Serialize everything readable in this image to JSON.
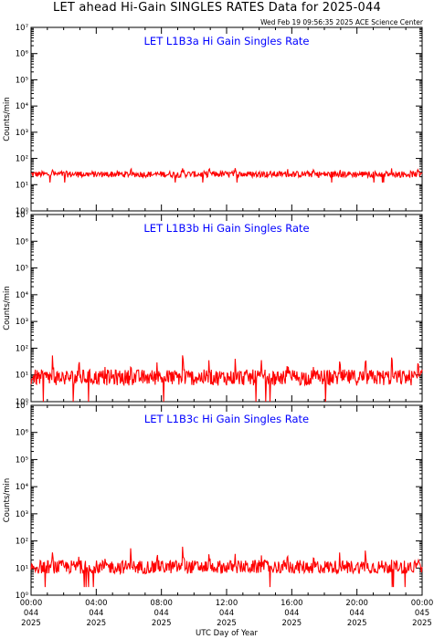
{
  "title": "LET ahead Hi-Gain SINGLES RATES Data for 2025-044",
  "timestamp": "Wed Feb 19 09:56:35 2025 ACE Science Center",
  "colors": {
    "data": "#ff0000",
    "panel_title": "#0000ff",
    "axis": "#000000"
  },
  "chart_data": [
    {
      "type": "line",
      "title": "LET L1B3a Hi Gain Singles Rate",
      "ylabel": "Counts/min",
      "yscale": "log",
      "ylim": [
        1,
        10000000
      ],
      "yticks": [
        "10⁰",
        "10¹",
        "10²",
        "10³",
        "10⁴",
        "10⁵",
        "10⁶",
        "10⁷"
      ],
      "xlim": [
        0,
        24
      ],
      "series": [
        {
          "baseline": 25,
          "noise": 0.12,
          "spike_factor": 1.5,
          "spike_interval_hours": 1.6,
          "min": 12
        }
      ]
    },
    {
      "type": "line",
      "title": "LET L1B3b Hi Gain Singles Rate",
      "ylabel": "Counts/min",
      "yscale": "log",
      "ylim": [
        1,
        10000000
      ],
      "yticks": [
        "10⁰",
        "10¹",
        "10²",
        "10³",
        "10⁴",
        "10⁵",
        "10⁶",
        "10⁷"
      ],
      "xlim": [
        0,
        24
      ],
      "series": [
        {
          "baseline": 8,
          "noise": 0.3,
          "spike_factor": 6,
          "spike_interval_hours": 1.6,
          "min": 1
        }
      ]
    },
    {
      "type": "line",
      "title": "LET L1B3c Hi Gain Singles Rate",
      "ylabel": "Counts/min",
      "yscale": "log",
      "ylim": [
        1,
        10000000
      ],
      "yticks": [
        "10⁰",
        "10¹",
        "10²",
        "10³",
        "10⁴",
        "10⁵",
        "10⁶",
        "10⁷"
      ],
      "xlim": [
        0,
        24
      ],
      "series": [
        {
          "baseline": 11,
          "noise": 0.25,
          "spike_factor": 4,
          "spike_interval_hours": 1.6,
          "min": 2
        }
      ]
    }
  ],
  "x_axis": {
    "label": "UTC Day of Year",
    "ticks": [
      {
        "hour": 0,
        "time": "00:00",
        "doy": "044",
        "year": "2025"
      },
      {
        "hour": 4,
        "time": "04:00",
        "doy": "044",
        "year": "2025"
      },
      {
        "hour": 8,
        "time": "08:00",
        "doy": "044",
        "year": "2025"
      },
      {
        "hour": 12,
        "time": "12:00",
        "doy": "044",
        "year": "2025"
      },
      {
        "hour": 16,
        "time": "16:00",
        "doy": "044",
        "year": "2025"
      },
      {
        "hour": 20,
        "time": "20:00",
        "doy": "044",
        "year": "2025"
      },
      {
        "hour": 24,
        "time": "00:00",
        "doy": "045",
        "year": "2025"
      }
    ]
  }
}
